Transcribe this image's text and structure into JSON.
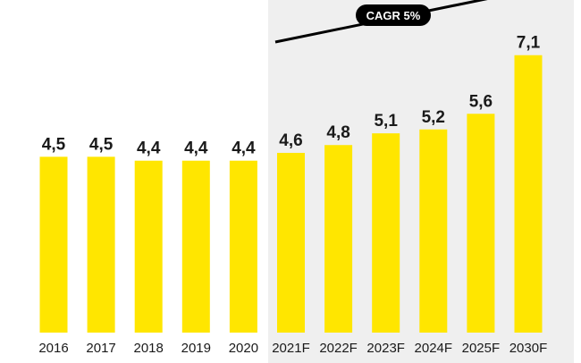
{
  "chart_data": {
    "type": "bar",
    "categories": [
      "2016",
      "2017",
      "2018",
      "2019",
      "2020",
      "2021F",
      "2022F",
      "2023F",
      "2024F",
      "2025F",
      "2030F"
    ],
    "values": [
      4.5,
      4.5,
      4.4,
      4.4,
      4.4,
      4.6,
      4.8,
      5.1,
      5.2,
      5.6,
      7.1
    ],
    "value_labels": [
      "4,5",
      "4,5",
      "4,4",
      "4,4",
      "4,4",
      "4,6",
      "4,8",
      "5,1",
      "5,2",
      "5,6",
      "7,1"
    ],
    "forecast_start_index": 5,
    "annotation": "CAGR 5%",
    "title": "",
    "xlabel": "",
    "ylabel": "",
    "ylim": [
      0,
      7.5
    ],
    "grid": false,
    "legend": "none"
  },
  "colors": {
    "bar": "#ffe600",
    "forecast_background": "#efefef",
    "text": "#1a1a1a",
    "annotation_badge": "#000000",
    "annotation_line": "#000000"
  }
}
